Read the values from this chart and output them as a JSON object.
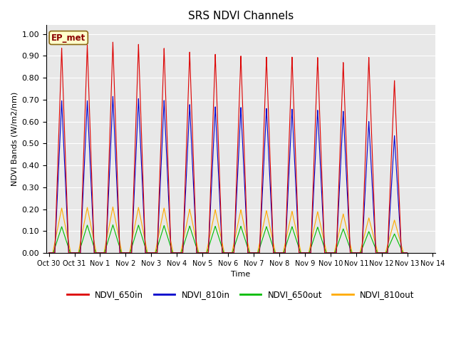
{
  "title": "SRS NDVI Channels",
  "ylabel": "NDVI Bands (W/m2/nm)",
  "xlabel": "Time",
  "annotation": "EP_met",
  "ylim": [
    0.0,
    1.04
  ],
  "tick_labels": [
    "Oct 30",
    "Oct 31",
    "Nov 1",
    "Nov 2",
    "Nov 3",
    "Nov 4",
    "Nov 5",
    "Nov 6",
    "Nov 7",
    "Nov 8",
    "Nov 9",
    "Nov 10",
    "Nov 11",
    "Nov 12",
    "Nov 13",
    "Nov 14"
  ],
  "tick_positions": [
    0,
    1,
    2,
    3,
    4,
    5,
    6,
    7,
    8,
    9,
    10,
    11,
    12,
    13,
    14,
    15
  ],
  "colors": {
    "NDVI_650in": "#dd0000",
    "NDVI_810in": "#0000cc",
    "NDVI_650out": "#00bb00",
    "NDVI_810out": "#ffaa00"
  },
  "peak_650in": [
    0.935,
    0.95,
    0.963,
    0.953,
    0.935,
    0.918,
    0.908,
    0.9,
    0.895,
    0.895,
    0.893,
    0.87,
    0.893,
    0.787
  ],
  "peak_810in": [
    0.695,
    0.695,
    0.715,
    0.705,
    0.697,
    0.678,
    0.668,
    0.665,
    0.66,
    0.657,
    0.652,
    0.647,
    0.6,
    0.535
  ],
  "peak_650out": [
    0.12,
    0.127,
    0.128,
    0.127,
    0.125,
    0.123,
    0.122,
    0.122,
    0.12,
    0.12,
    0.118,
    0.11,
    0.098,
    0.087
  ],
  "peak_810out": [
    0.205,
    0.208,
    0.21,
    0.208,
    0.205,
    0.2,
    0.197,
    0.197,
    0.193,
    0.19,
    0.188,
    0.178,
    0.16,
    0.15
  ],
  "background_color": "#e8e8e8",
  "yticks": [
    0.0,
    0.1,
    0.2,
    0.3,
    0.4,
    0.5,
    0.6,
    0.7,
    0.8,
    0.9,
    1.0
  ],
  "figsize": [
    6.4,
    4.8
  ],
  "dpi": 100
}
